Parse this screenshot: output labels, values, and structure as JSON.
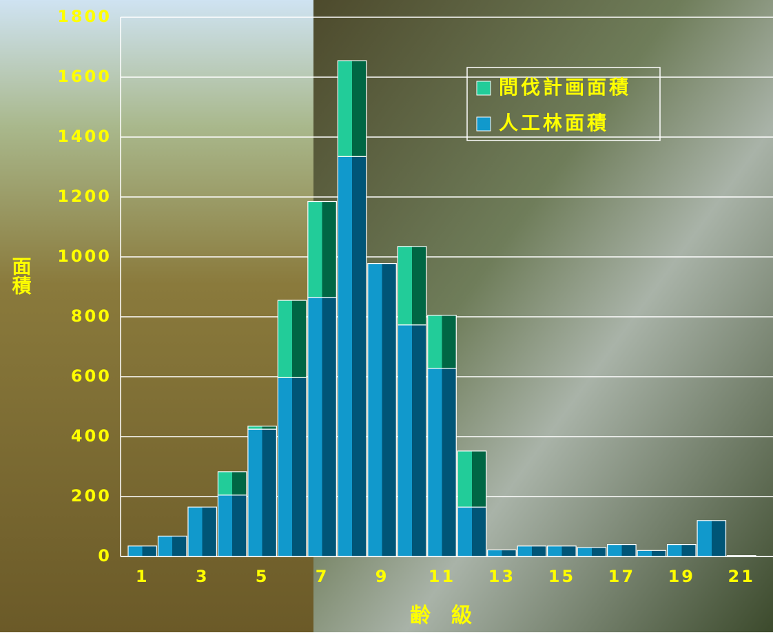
{
  "chart_data": {
    "type": "stacked_bar",
    "y_label": "面積",
    "x_label": "齢　級",
    "categories": [
      "1",
      null,
      "3",
      null,
      "5",
      null,
      "7",
      null,
      "9",
      null,
      "11",
      null,
      "13",
      null,
      "15",
      null,
      "17",
      null,
      "19",
      null,
      "21"
    ],
    "series": [
      {
        "name": "人工林面積",
        "color": "#1199cc",
        "dark": "#005577",
        "values": [
          35,
          68,
          165,
          205,
          425,
          597,
          865,
          1335,
          978,
          773,
          628,
          165,
          22,
          35,
          35,
          30,
          40,
          20,
          40,
          120,
          3
        ]
      },
      {
        "name": "間伐計画面積",
        "color": "#22cc99",
        "dark": "#006644",
        "values": [
          0,
          0,
          0,
          78,
          10,
          258,
          320,
          320,
          0,
          262,
          177,
          187,
          0,
          0,
          0,
          0,
          0,
          0,
          0,
          0,
          0
        ]
      }
    ],
    "ylim": [
      0,
      1800
    ],
    "yticks": [
      0,
      200,
      400,
      600,
      800,
      1000,
      1200,
      1400,
      1600,
      1800
    ],
    "grid": true
  }
}
